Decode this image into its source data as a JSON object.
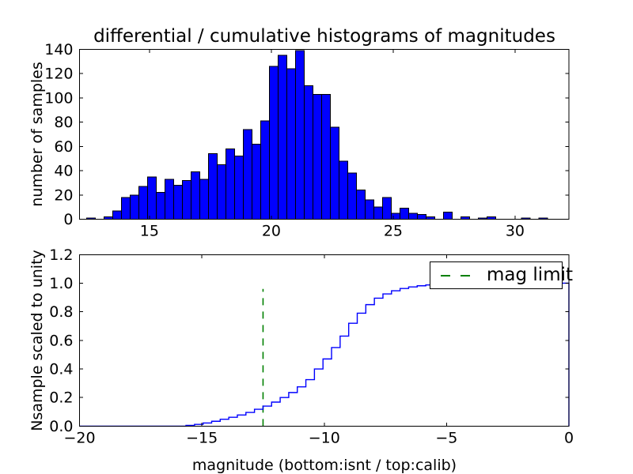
{
  "title": "differential / cumulative histograms of magnitudes",
  "colors": {
    "bar_fill": "#0000ff",
    "bar_edge": "#000000",
    "step_line": "#0000ff",
    "mag_limit_line": "#008000",
    "axis": "#000000",
    "background": "#ffffff"
  },
  "top_plot": {
    "ylabel": "number of samples",
    "xticks": {
      "values": [
        15,
        20,
        25,
        30
      ],
      "labels": [
        "15",
        "20",
        "25",
        "30"
      ]
    },
    "yticks": {
      "values": [
        0,
        20,
        40,
        60,
        80,
        100,
        120,
        140
      ],
      "labels": [
        "0",
        "20",
        "40",
        "60",
        "80",
        "100",
        "120",
        "140"
      ]
    }
  },
  "bottom_plot": {
    "ylabel": "Nsample scaled to unity",
    "xlabel": "magnitude (bottom:isnt / top:calib)",
    "xticks": {
      "values": [
        -20,
        -15,
        -10,
        -5,
        0
      ],
      "labels": [
        "−20",
        "−15",
        "−10",
        "−5",
        "0"
      ]
    },
    "yticks": {
      "values": [
        0.0,
        0.2,
        0.4,
        0.6,
        0.8,
        1.0,
        1.2
      ],
      "labels": [
        "0.0",
        "0.2",
        "0.4",
        "0.6",
        "0.8",
        "1.0",
        "1.2"
      ]
    },
    "legend": {
      "label": "mag limit"
    }
  },
  "chart_data": [
    {
      "type": "bar",
      "subplot": "top",
      "title": "differential / cumulative histograms of magnitudes",
      "ylabel": "number of samples",
      "xlim": [
        12.13,
        32.21
      ],
      "ylim": [
        0,
        140
      ],
      "bin_start": 12.42,
      "bin_width": 0.357,
      "counts": [
        1,
        0,
        2,
        7,
        18,
        20,
        27,
        35,
        22,
        33,
        28,
        32,
        39,
        33,
        54,
        45,
        58,
        52,
        74,
        62,
        81,
        126,
        135,
        124,
        139,
        110,
        103,
        103,
        76,
        48,
        38,
        24,
        16,
        10,
        18,
        5,
        9,
        5,
        4,
        2,
        0,
        6,
        0,
        2,
        0,
        1,
        2,
        0,
        0,
        0,
        1,
        0,
        1
      ],
      "bar_color": "#0000ff",
      "edge_color": "#000000",
      "grid": false
    },
    {
      "type": "line",
      "subplot": "bottom",
      "style": "step-post",
      "ylabel": "Nsample scaled to unity",
      "xlabel": "magnitude (bottom:isnt / top:calib)",
      "xlim": [
        -20,
        0
      ],
      "ylim": [
        0,
        1.2
      ],
      "line_color": "#0000ff",
      "start": [
        -20,
        0
      ],
      "steps": [
        [
          -15.65,
          0.005
        ],
        [
          -15.3,
          0.012
        ],
        [
          -14.95,
          0.022
        ],
        [
          -14.6,
          0.034
        ],
        [
          -14.25,
          0.048
        ],
        [
          -13.9,
          0.062
        ],
        [
          -13.55,
          0.078
        ],
        [
          -13.2,
          0.096
        ],
        [
          -12.85,
          0.118
        ],
        [
          -12.5,
          0.14
        ],
        [
          -12.15,
          0.168
        ],
        [
          -11.8,
          0.2
        ],
        [
          -11.45,
          0.235
        ],
        [
          -11.1,
          0.275
        ],
        [
          -10.75,
          0.325
        ],
        [
          -10.4,
          0.4
        ],
        [
          -10.05,
          0.47
        ],
        [
          -9.7,
          0.55
        ],
        [
          -9.35,
          0.63
        ],
        [
          -9.0,
          0.72
        ],
        [
          -8.65,
          0.79
        ],
        [
          -8.3,
          0.85
        ],
        [
          -7.95,
          0.895
        ],
        [
          -7.6,
          0.925
        ],
        [
          -7.25,
          0.947
        ],
        [
          -6.9,
          0.963
        ],
        [
          -6.55,
          0.974
        ],
        [
          -6.2,
          0.982
        ],
        [
          -5.85,
          0.988
        ],
        [
          -5.5,
          0.992
        ],
        [
          -5.15,
          0.995
        ],
        [
          -4.8,
          0.997
        ],
        [
          -4.45,
          0.998
        ],
        [
          -4.1,
          0.999
        ],
        [
          -3.75,
          1.0
        ]
      ],
      "end": [
        0,
        0
      ],
      "vline": {
        "x": -12.5,
        "y_from": 0,
        "y_to": 0.96,
        "color": "#008000",
        "dashed": true,
        "label": "mag limit"
      },
      "legend": {
        "position": "upper right",
        "entries": [
          "mag limit"
        ]
      },
      "grid": false
    }
  ]
}
